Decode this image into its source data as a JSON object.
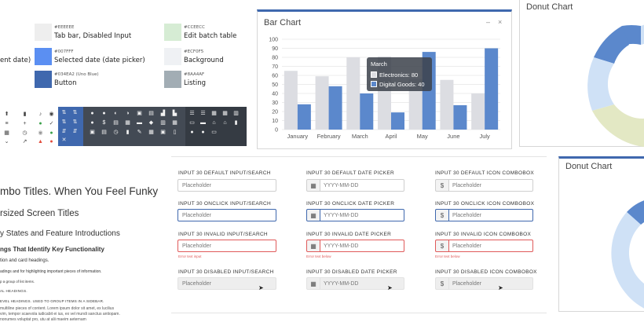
{
  "swatches": [
    {
      "hex": "#EEEEEE",
      "label": "Tab bar, Disabled Input",
      "color": "#eeeeee"
    },
    {
      "hex": "#007FFF",
      "label": "Selected date (date picker)",
      "color": "#5b8ff2"
    },
    {
      "hex": "#034EA2 (Uno Blue)",
      "label": "Button",
      "color": "#3f68ae"
    },
    {
      "hex": "#CCEECC",
      "label": "Edit batch table",
      "color": "#d6ecd4"
    },
    {
      "hex": "#ECF0F5",
      "label": "Background",
      "color": "#eff1f4"
    },
    {
      "hex": "#8AA4AF",
      "label": "Listing",
      "color": "#a2adb4"
    }
  ],
  "left_cut_label": "ent date)",
  "typography": {
    "t1": "mbo Titles. When You Feel Funky",
    "t2": "rsized Screen Titles",
    "t3": "y States and Feature Introductions",
    "t4": "ngs That Identify Key Functionality",
    "t5": "tion and card headings.",
    "t6": "adings and for highlighting important pieces of information.",
    "t7": "p a group of list items.",
    "t8": "AL HEADINGS.",
    "t9": "EVEL HEADINGS. USED TO GROUP ITEMS IN A SIDEBAR.",
    "t10": "multiline pieces of content. Lorem ipsum dolor sit amet, ex lucilius",
    "t11": "vim, tempor scaevola iudicabit ei ius, ex vel mundi sanctus antiopam.",
    "t12": "nonumes voluptat pro, utu at alii maeim aeternam"
  },
  "bar_chart": {
    "title": "Bar Chart",
    "minimize_glyph": "–",
    "close_glyph": "×",
    "tooltip": {
      "title": "March",
      "row1": "Electronics: 80",
      "row2": "Digital Goods: 40"
    }
  },
  "chart_data": {
    "type": "bar",
    "categories": [
      "January",
      "February",
      "March",
      "April",
      "May",
      "June",
      "July"
    ],
    "series": [
      {
        "name": "Electronics",
        "values": [
          65,
          59,
          80,
          81,
          56,
          55,
          40
        ],
        "color": "#dcdde2"
      },
      {
        "name": "Digital Goods",
        "values": [
          28,
          48,
          40,
          19,
          86,
          27,
          90
        ],
        "color": "#5b88cc"
      }
    ],
    "ylim": [
      0,
      100
    ],
    "yticks": [
      0,
      10,
      20,
      30,
      40,
      50,
      60,
      70,
      80,
      90,
      100
    ],
    "grid": true
  },
  "donuts": [
    {
      "title": "Donut Chart"
    },
    {
      "title": "Donut Chart"
    }
  ],
  "donut_colors": {
    "dark_blue": "#5b88cc",
    "light_blue": "#cfe1f6",
    "yellow_green": "#e3e8c4",
    "gray": "#dcdde2"
  },
  "forms": {
    "col1": [
      {
        "label": "INPUT 30 DEFAULT INPUT/SEARCH",
        "placeholder": "Placeholder"
      },
      {
        "label": "INPUT 30 ONCLICK INPUT/SEARCH",
        "placeholder": "Placeholder"
      },
      {
        "label": "INPUT 30 INVALID INPUT/SEARCH",
        "placeholder": "Placeholder",
        "error": "Error text input"
      },
      {
        "label": "INPUT 30 DISABLED INPUT/SEARCH",
        "placeholder": "Placeholder"
      }
    ],
    "col2": [
      {
        "label": "INPUT 30 DEFAULT DATE PICKER",
        "placeholder": "YYYY-MM-DD"
      },
      {
        "label": "INPUT 30 ONCLICK DATE PICKER",
        "placeholder": "YYYY-MM-DD"
      },
      {
        "label": "INPUT 30 INVALID DATE PICKER",
        "placeholder": "YYYY-MM-DD",
        "error": "Error text below"
      },
      {
        "label": "INPUT 30 DISABLED DATE PICKER",
        "placeholder": "YYYY-MM-DD"
      }
    ],
    "col3": [
      {
        "label": "INPUT 30 DEFAULT ICON COMBOBOX",
        "placeholder": "Placeholder"
      },
      {
        "label": "INPUT 30 ONCLICK ICON COMBOBOX",
        "placeholder": "Placeholder"
      },
      {
        "label": "INPUT 30 INVALID ICON COMBOBOX",
        "placeholder": "Placeholder",
        "error": "Error text below"
      },
      {
        "label": "INPUT 30 DISABLED ICON COMBOBOX",
        "placeholder": "Placeholder"
      }
    ],
    "currency_symbol": "$"
  },
  "icons": {
    "light_col1": [
      "upload-icon",
      "list-icon",
      "grid-icon",
      "chevron-down-icon"
    ],
    "light_col2": [
      "trash-icon",
      "plus-icon",
      "clock-icon",
      "external-link-icon"
    ],
    "light_col3": [
      "bell-icon",
      "check-circle-icon",
      "alert-circle-icon",
      "warning-icon"
    ]
  }
}
